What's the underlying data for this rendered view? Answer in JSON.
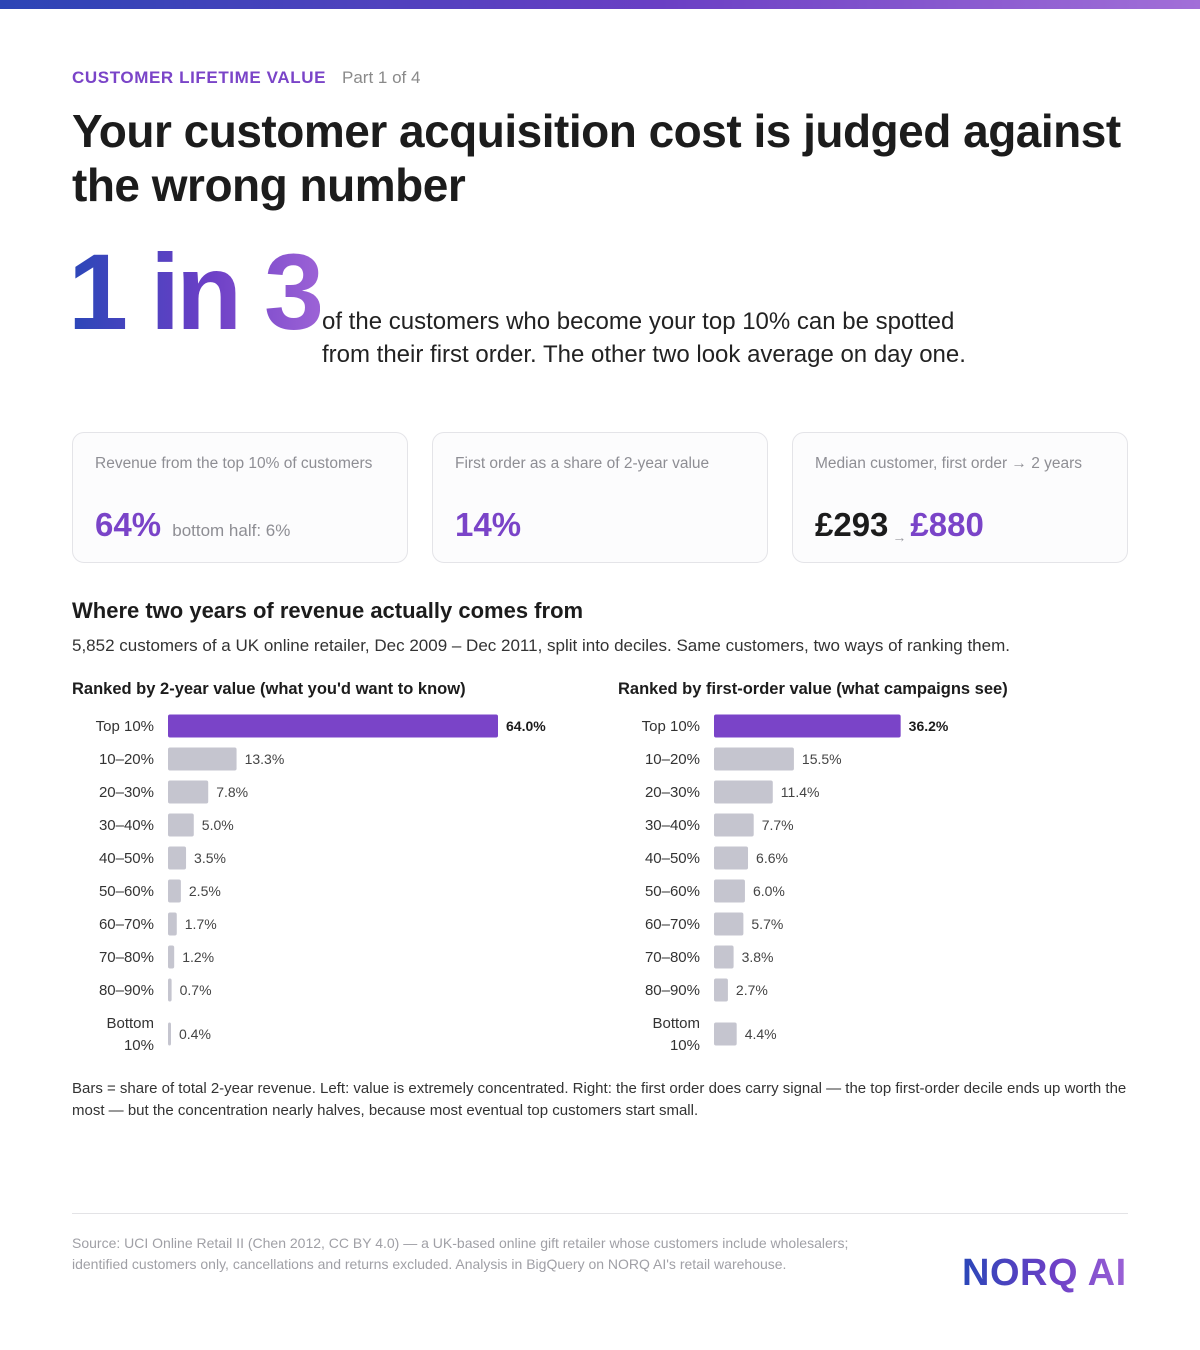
{
  "header": {
    "kicker": "CUSTOMER LIFETIME VALUE",
    "part": "Part 1 of 4",
    "title": "Your customer acquisition cost is judged against the wrong number"
  },
  "hero": {
    "big_number": "1 in 3",
    "text": "of the customers who become your top 10% can be spotted from their first order. The other two look average on day one."
  },
  "cards": [
    {
      "label": "Revenue from the top 10% of customers",
      "value": "64%",
      "sub": "bottom half: 6%"
    },
    {
      "label": "First order as a share of 2-year value",
      "value": "14%"
    },
    {
      "label": "Median customer, first order → 2 years",
      "value_from": "£293",
      "arrow": "→",
      "value_to": "£880"
    }
  ],
  "section": {
    "title": "Where two years of revenue actually comes from",
    "subtitle": "5,852 customers of a UK online retailer, Dec 2009 – Dec 2011, split into deciles. Same customers, two ways of ranking them."
  },
  "chart_data": [
    {
      "type": "bar",
      "orientation": "horizontal",
      "title": "Ranked by 2-year value (what you'd want to know)",
      "categories": [
        "Top 10%",
        "10–20%",
        "20–30%",
        "30–40%",
        "40–50%",
        "50–60%",
        "60–70%",
        "70–80%",
        "80–90%",
        "Bottom 10%"
      ],
      "values": [
        64.0,
        13.3,
        7.8,
        5.0,
        3.5,
        2.5,
        1.7,
        1.2,
        0.7,
        0.4
      ],
      "labels": [
        "64.0%",
        "13.3%",
        "7.8%",
        "5.0%",
        "3.5%",
        "2.5%",
        "1.7%",
        "1.2%",
        "0.7%",
        "0.4%"
      ],
      "unit": "%",
      "highlight_index": 0,
      "colors": {
        "highlight": "#7a44c8",
        "default": "#c5c5cf"
      }
    },
    {
      "type": "bar",
      "orientation": "horizontal",
      "title": "Ranked by first-order value (what campaigns see)",
      "categories": [
        "Top 10%",
        "10–20%",
        "20–30%",
        "30–40%",
        "40–50%",
        "50–60%",
        "60–70%",
        "70–80%",
        "80–90%",
        "Bottom 10%"
      ],
      "values": [
        36.2,
        15.5,
        11.4,
        7.7,
        6.6,
        6.0,
        5.7,
        3.8,
        2.7,
        4.4
      ],
      "labels": [
        "36.2%",
        "15.5%",
        "11.4%",
        "7.7%",
        "6.6%",
        "6.0%",
        "5.7%",
        "3.8%",
        "2.7%",
        "4.4%"
      ],
      "unit": "%",
      "highlight_index": 0,
      "colors": {
        "highlight": "#7a44c8",
        "default": "#c5c5cf"
      }
    }
  ],
  "note": "Bars = share of total 2-year revenue. Left: value is extremely concentrated. Right: the first order does carry signal — the top first-order decile ends up worth the most — but the concentration nearly halves, because most eventual top customers start small.",
  "footer": {
    "source": "Source: UCI Online Retail II (Chen 2012, CC BY 4.0) — a UK-based online gift retailer whose customers include wholesalers; identified customers only, cancellations and returns excluded. Analysis in BigQuery on NORQ AI's retail warehouse.",
    "logo": "NORQ AI"
  }
}
